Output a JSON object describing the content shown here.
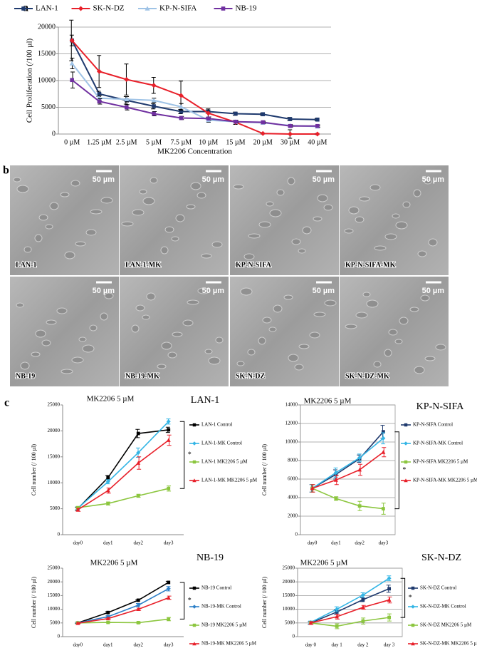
{
  "panels": [
    "a",
    "b",
    "c"
  ],
  "images": [
    {
      "label": "LAN-1",
      "scale": "50 µm"
    },
    {
      "label": "LAN-1-MK",
      "scale": "50 µm"
    },
    {
      "label": "KP-N-SIFA",
      "scale": "50 µm"
    },
    {
      "label": "KP-N-SIFA-MK",
      "scale": "50 µm"
    },
    {
      "label": "NB-19",
      "scale": "50 µm"
    },
    {
      "label": "NB-19-MK",
      "scale": "50 µm"
    },
    {
      "label": "SK-N-DZ",
      "scale": "50 µm"
    },
    {
      "label": "SK-N-DZ-MK",
      "scale": "50 µm"
    }
  ],
  "chart_data": [
    {
      "type": "line",
      "ylabel": "Cell Proliferation (/100 µl)",
      "xlabel": "MK2206 Concentration",
      "categories": [
        "0 µM",
        "1.25 µM",
        "2.5 µM",
        "5 µM",
        "7.5 µM",
        "10 µM",
        "15 µM",
        "20 µM",
        "30 µM",
        "40 µM"
      ],
      "ylim": [
        0,
        20000
      ],
      "yticks": [
        0,
        5000,
        10000,
        15000,
        20000
      ],
      "grid": true,
      "legend": "top",
      "series": [
        {
          "name": "LAN-1",
          "color": "#1f3a6e",
          "marker": "square",
          "values": [
            17500,
            7500,
            6300,
            5200,
            4200,
            4200,
            3800,
            3700,
            2800,
            2700
          ],
          "errors": [
            3800,
            500,
            700,
            500,
            400,
            300,
            300,
            200,
            300,
            200
          ]
        },
        {
          "name": "SK-N-DZ",
          "color": "#e8202a",
          "marker": "diamond",
          "values": [
            17500,
            11700,
            10200,
            9100,
            7200,
            3900,
            2200,
            100,
            0,
            0
          ],
          "errors": [
            1000,
            3000,
            2900,
            1500,
            2700,
            800,
            400,
            100,
            800,
            100
          ]
        },
        {
          "name": "KP-N-SIFA",
          "color": "#9fc3e6",
          "marker": "triangle",
          "values": [
            13200,
            6700,
            6500,
            6300,
            5100,
            2600,
            2300,
            2100,
            1600,
            1400
          ],
          "errors": [
            1000,
            500,
            500,
            400,
            600,
            400,
            300,
            200,
            200,
            200
          ]
        },
        {
          "name": "NB-19",
          "color": "#7030a0",
          "marker": "square",
          "values": [
            10100,
            6100,
            5000,
            3800,
            3000,
            2900,
            2300,
            2200,
            1500,
            1500
          ],
          "errors": [
            1500,
            500,
            500,
            400,
            300,
            300,
            200,
            200,
            200,
            200
          ]
        }
      ]
    },
    {
      "type": "line",
      "title": "MK2206 5 µM",
      "subtitle": "LAN-1",
      "ylabel": "Cell number (/ 100 µl)",
      "annotation": "*",
      "categories": [
        "day0",
        "day1",
        "day2",
        "day3"
      ],
      "ylim": [
        0,
        25000
      ],
      "yticks": [
        0,
        5000,
        10000,
        15000,
        20000,
        25000
      ],
      "grid": false,
      "legend": "right",
      "series": [
        {
          "name": "LAN-1 Control",
          "color": "#000000",
          "marker": "square",
          "values": [
            5000,
            11000,
            19500,
            20200
          ],
          "errors": [
            300,
            400,
            800,
            500
          ]
        },
        {
          "name": "LAN-1-MK Control",
          "color": "#33b5e5",
          "marker": "diamond",
          "values": [
            5100,
            10200,
            15800,
            21800
          ],
          "errors": [
            300,
            400,
            900,
            500
          ]
        },
        {
          "name": "LAN-1 MK2206 5 µM",
          "color": "#8cc63f",
          "marker": "square",
          "values": [
            5200,
            6000,
            7500,
            8900
          ],
          "errors": [
            200,
            300,
            300,
            500
          ]
        },
        {
          "name": "LAN-1-MK MK2206 5 µM",
          "color": "#e8202a",
          "marker": "triangle",
          "values": [
            4800,
            8500,
            13800,
            18200
          ],
          "errors": [
            300,
            500,
            1200,
            1000
          ]
        }
      ]
    },
    {
      "type": "line",
      "title": "MK2206 5 µM",
      "subtitle": "KP-N-SIFA",
      "ylabel": "Cell number (/ 100 µl)",
      "annotation": "*",
      "categories": [
        "day0",
        "day1",
        "day2",
        "day3"
      ],
      "ylim": [
        0,
        14000
      ],
      "yticks": [
        0,
        2000,
        4000,
        6000,
        8000,
        10000,
        12000,
        14000
      ],
      "grid": true,
      "legend": "right",
      "series": [
        {
          "name": "KP-N-SIFA Control",
          "color": "#1f3a6e",
          "marker": "square",
          "values": [
            5000,
            6500,
            8200,
            11100
          ],
          "errors": [
            400,
            500,
            400,
            700
          ]
        },
        {
          "name": "KP-N-SIFA-MK Control",
          "color": "#33b5e5",
          "marker": "diamond",
          "values": [
            5000,
            6700,
            8300,
            10400
          ],
          "errors": [
            400,
            500,
            400,
            600
          ]
        },
        {
          "name": "KP-N-SIFA MK2206 5 µM",
          "color": "#8cc63f",
          "marker": "square",
          "values": [
            5000,
            3900,
            3100,
            2800
          ],
          "errors": [
            400,
            200,
            500,
            600
          ]
        },
        {
          "name": "KP-N-SIFA-MK MK2206 5 µM",
          "color": "#e8202a",
          "marker": "triangle",
          "values": [
            5000,
            5900,
            7000,
            8900
          ],
          "errors": [
            400,
            500,
            600,
            500
          ]
        }
      ]
    },
    {
      "type": "line",
      "title": "MK2206 5 µM",
      "subtitle": "NB-19",
      "ylabel": "Cell number (/ 100 µl)",
      "annotation": "*",
      "categories": [
        "day0",
        "day1",
        "day2",
        "day3"
      ],
      "ylim": [
        0,
        25000
      ],
      "yticks": [
        0,
        5000,
        10000,
        15000,
        20000,
        25000
      ],
      "grid": false,
      "legend": "right",
      "series": [
        {
          "name": "NB-19 Control",
          "color": "#000000",
          "marker": "square",
          "values": [
            5000,
            8800,
            13300,
            19800
          ],
          "errors": [
            200,
            300,
            300,
            400
          ]
        },
        {
          "name": "NB-19-MK Control",
          "color": "#2e80c8",
          "marker": "diamond",
          "values": [
            5000,
            7300,
            11500,
            17500
          ],
          "errors": [
            200,
            400,
            600,
            800
          ]
        },
        {
          "name": "NB-19 MK2206 5 µM",
          "color": "#8cc63f",
          "marker": "square",
          "values": [
            5000,
            5200,
            5100,
            6400
          ],
          "errors": [
            200,
            200,
            300,
            600
          ]
        },
        {
          "name": "NB-19-MK MK2206 5 µM",
          "color": "#e8202a",
          "marker": "triangle",
          "values": [
            4900,
            6600,
            10000,
            14200
          ],
          "errors": [
            200,
            400,
            400,
            600
          ]
        }
      ]
    },
    {
      "type": "line",
      "title": "MK2206 5 µM",
      "subtitle": "SK-N-DZ",
      "ylabel": "Cell number (/ 100 µl)",
      "annotation": "*",
      "categories": [
        "day 0",
        "day 1",
        "day 2",
        "day 3"
      ],
      "ylim": [
        0,
        25000
      ],
      "yticks": [
        0,
        5000,
        10000,
        15000,
        20000,
        25000
      ],
      "grid": true,
      "legend": "right",
      "series": [
        {
          "name": "SK-N-DZ Control",
          "color": "#1f3a6e",
          "marker": "square",
          "values": [
            5000,
            9000,
            13500,
            17500
          ],
          "errors": [
            500,
            900,
            700,
            1300
          ]
        },
        {
          "name": "SK-N-DZ-MK Control",
          "color": "#33b5e5",
          "marker": "diamond",
          "values": [
            5200,
            10000,
            15200,
            21300
          ],
          "errors": [
            500,
            900,
            800,
            900
          ]
        },
        {
          "name": "SK-N-DZ MK2206 5 µM",
          "color": "#8cc63f",
          "marker": "square",
          "values": [
            5000,
            3800,
            5700,
            7000
          ],
          "errors": [
            500,
            900,
            1100,
            1300
          ]
        },
        {
          "name": "SK-N-DZ-MK MK2206 5 µM",
          "color": "#e8202a",
          "marker": "triangle",
          "values": [
            5000,
            7300,
            10700,
            13400
          ],
          "errors": [
            500,
            900,
            700,
            1100
          ]
        }
      ]
    }
  ]
}
